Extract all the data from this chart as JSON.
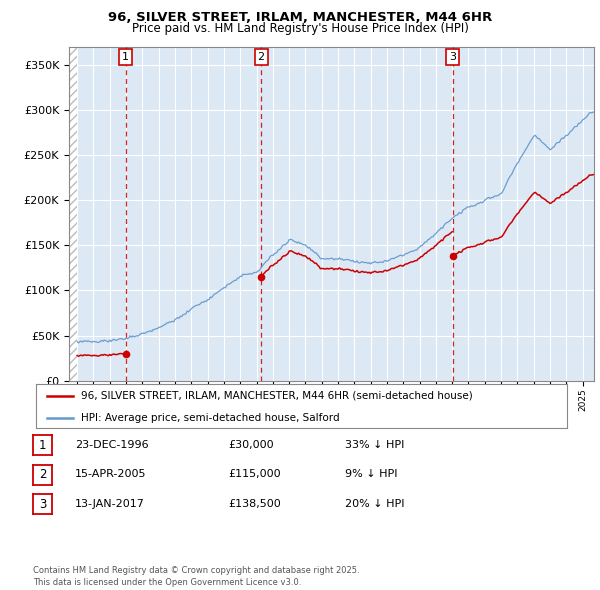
{
  "title_line1": "96, SILVER STREET, IRLAM, MANCHESTER, M44 6HR",
  "title_line2": "Price paid vs. HM Land Registry's House Price Index (HPI)",
  "background_color": "#ffffff",
  "plot_bg_color": "#dce9f5",
  "hatch_color": "#c0c0c0",
  "grid_color": "#ffffff",
  "sale_prices": [
    30000,
    115000,
    138500
  ],
  "sale_labels": [
    "1",
    "2",
    "3"
  ],
  "vline_color": "#cc0000",
  "sale_marker_color": "#cc0000",
  "hpi_line_color": "#6699cc",
  "legend_entries": [
    "96, SILVER STREET, IRLAM, MANCHESTER, M44 6HR (semi-detached house)",
    "HPI: Average price, semi-detached house, Salford"
  ],
  "table_rows": [
    [
      "1",
      "23-DEC-1996",
      "£30,000",
      "33% ↓ HPI"
    ],
    [
      "2",
      "15-APR-2005",
      "£115,000",
      "9% ↓ HPI"
    ],
    [
      "3",
      "13-JAN-2017",
      "£138,500",
      "20% ↓ HPI"
    ]
  ],
  "footer_text": "Contains HM Land Registry data © Crown copyright and database right 2025.\nThis data is licensed under the Open Government Licence v3.0.",
  "ylim": [
    0,
    370000
  ],
  "yticks": [
    0,
    50000,
    100000,
    150000,
    200000,
    250000,
    300000,
    350000
  ],
  "ytick_labels": [
    "£0",
    "£50K",
    "£100K",
    "£150K",
    "£200K",
    "£250K",
    "£300K",
    "£350K"
  ],
  "xlim_start": 1993.5,
  "xlim_end": 2025.7,
  "sale_years_decimal": [
    1996.978,
    2005.286,
    2017.036
  ]
}
